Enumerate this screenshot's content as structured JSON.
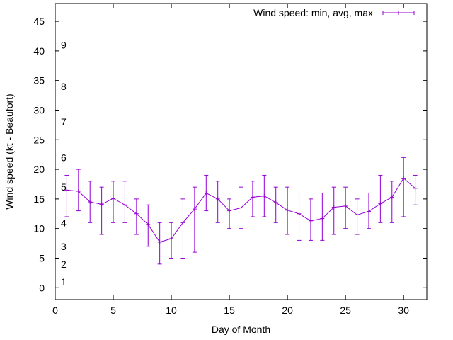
{
  "chart_data": {
    "type": "line",
    "xlabel": "Day of Month",
    "ylabel": "Wind speed (kt - Beaufort)",
    "xlim": [
      0,
      32
    ],
    "ylim": [
      -2,
      48
    ],
    "x_ticks": [
      0,
      5,
      10,
      15,
      20,
      25,
      30
    ],
    "y_ticks": [
      0,
      5,
      10,
      15,
      20,
      25,
      30,
      35,
      40,
      45
    ],
    "grid": false,
    "legend_position": "top-right",
    "series": [
      {
        "name": "Wind speed: min, avg, max",
        "color": "#9400d3",
        "x": [
          1,
          2,
          3,
          4,
          5,
          6,
          7,
          8,
          9,
          10,
          11,
          12,
          13,
          14,
          15,
          16,
          17,
          18,
          19,
          20,
          21,
          22,
          23,
          24,
          25,
          26,
          27,
          28,
          29,
          30,
          31
        ],
        "avg": [
          16.5,
          16.3,
          14.5,
          14.1,
          15.1,
          14.0,
          12.5,
          10.7,
          7.7,
          8.3,
          11.0,
          13.3,
          16.0,
          15.0,
          13.0,
          13.5,
          15.3,
          15.5,
          14.4,
          13.1,
          12.5,
          11.3,
          11.7,
          13.6,
          13.8,
          12.3,
          12.9,
          14.2,
          15.3,
          18.5,
          16.8
        ],
        "min": [
          12,
          13,
          11,
          9,
          11,
          11,
          9,
          7,
          4,
          5,
          5,
          6,
          13,
          11,
          10,
          10,
          12,
          12,
          11,
          9,
          8,
          8,
          8,
          9,
          10,
          9,
          10,
          11,
          11,
          12,
          14
        ],
        "max": [
          19,
          20,
          18,
          17,
          18,
          18,
          15,
          14,
          11,
          11,
          15,
          17,
          19,
          18,
          15,
          17,
          18,
          19,
          17,
          17,
          16,
          15,
          16,
          17,
          17,
          15,
          16,
          19,
          18,
          22,
          19
        ]
      }
    ],
    "annotations": [
      {
        "text": "1",
        "y": 1
      },
      {
        "text": "2",
        "y": 4
      },
      {
        "text": "3",
        "y": 7
      },
      {
        "text": "4",
        "y": 11
      },
      {
        "text": "5",
        "y": 17
      },
      {
        "text": "6",
        "y": 22
      },
      {
        "text": "7",
        "y": 28
      },
      {
        "text": "8",
        "y": 34
      },
      {
        "text": "9",
        "y": 41
      }
    ]
  }
}
